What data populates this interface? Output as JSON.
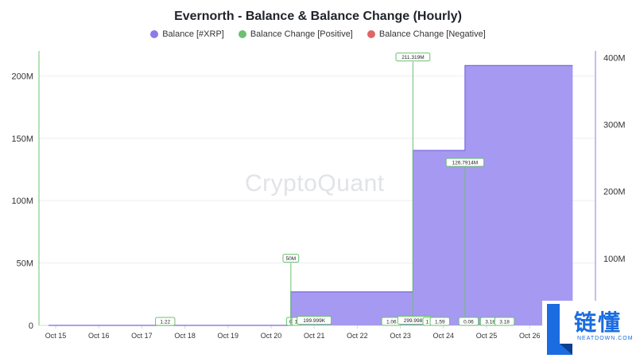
{
  "chart_data": {
    "type": "area",
    "title": "Evernorth - Balance & Balance Change (Hourly)",
    "legend": [
      {
        "name": "Balance [#XRP]",
        "color": "#8b7ae8"
      },
      {
        "name": "Balance Change [Positive]",
        "color": "#6cc070"
      },
      {
        "name": "Balance Change [Negative]",
        "color": "#e06666"
      }
    ],
    "x_ticks": [
      "Oct 15",
      "Oct 16",
      "Oct 17",
      "Oct 18",
      "Oct 19",
      "Oct 20",
      "Oct 21",
      "Oct 22",
      "Oct 23",
      "Oct 24",
      "Oct 25",
      "Oct 26"
    ],
    "y_left": {
      "ticks": [
        "0",
        "50M",
        "100M",
        "150M",
        "200M"
      ],
      "range": [
        0,
        220000000
      ]
    },
    "y_right": {
      "ticks": [
        "100M",
        "200M",
        "300M",
        "400M"
      ],
      "range": [
        0,
        410000000
      ]
    },
    "balance_series": {
      "name": "Balance [#XRP]",
      "points": [
        {
          "x": "Oct 14 20:00",
          "y": 0
        },
        {
          "x": "Oct 20 11:00",
          "y": 0
        },
        {
          "x": "Oct 20 11:00",
          "y": 50000000
        },
        {
          "x": "Oct 23 07:00",
          "y": 50000000
        },
        {
          "x": "Oct 23 07:00",
          "y": 261300000
        },
        {
          "x": "Oct 24 12:00",
          "y": 261300000
        },
        {
          "x": "Oct 24 12:00",
          "y": 388100000
        },
        {
          "x": "Oct 27 00:00",
          "y": 388100000
        }
      ]
    },
    "change_markers": [
      {
        "x": "Oct 17 13:00",
        "label": "1.22",
        "value": 1.22
      },
      {
        "x": "Oct 20 11:00",
        "label": "0",
        "value": 0
      },
      {
        "x": "Oct 20 11:00",
        "label": "50M",
        "value": 50000000
      },
      {
        "x": "Oct 20 14:00",
        "label": "1",
        "value": 1
      },
      {
        "x": "Oct 21 00:00",
        "label": "199.999K",
        "value": 199999
      },
      {
        "x": "Oct 22 19:00",
        "label": "1.06",
        "value": 1.06
      },
      {
        "x": "Oct 23 07:00",
        "label": "211.319M",
        "value": 211319000
      },
      {
        "x": "Oct 23 08:00",
        "label": "299.998K",
        "value": 299998
      },
      {
        "x": "Oct 23 15:00",
        "label": "1",
        "value": 1
      },
      {
        "x": "Oct 23 22:00",
        "label": "1.59",
        "value": 1.59
      },
      {
        "x": "Oct 24 12:00",
        "label": "126.7914M",
        "value": 126791400
      },
      {
        "x": "Oct 24 14:00",
        "label": "0.06",
        "value": 0.06
      },
      {
        "x": "Oct 25 02:00",
        "label": "3.18",
        "value": 3.18
      },
      {
        "x": "Oct 25 10:00",
        "label": "3.18",
        "value": 3.18
      }
    ]
  },
  "watermark": "CryptoQuant",
  "brand": {
    "cn": "链懂",
    "en": "NEATDOWN.COM"
  }
}
